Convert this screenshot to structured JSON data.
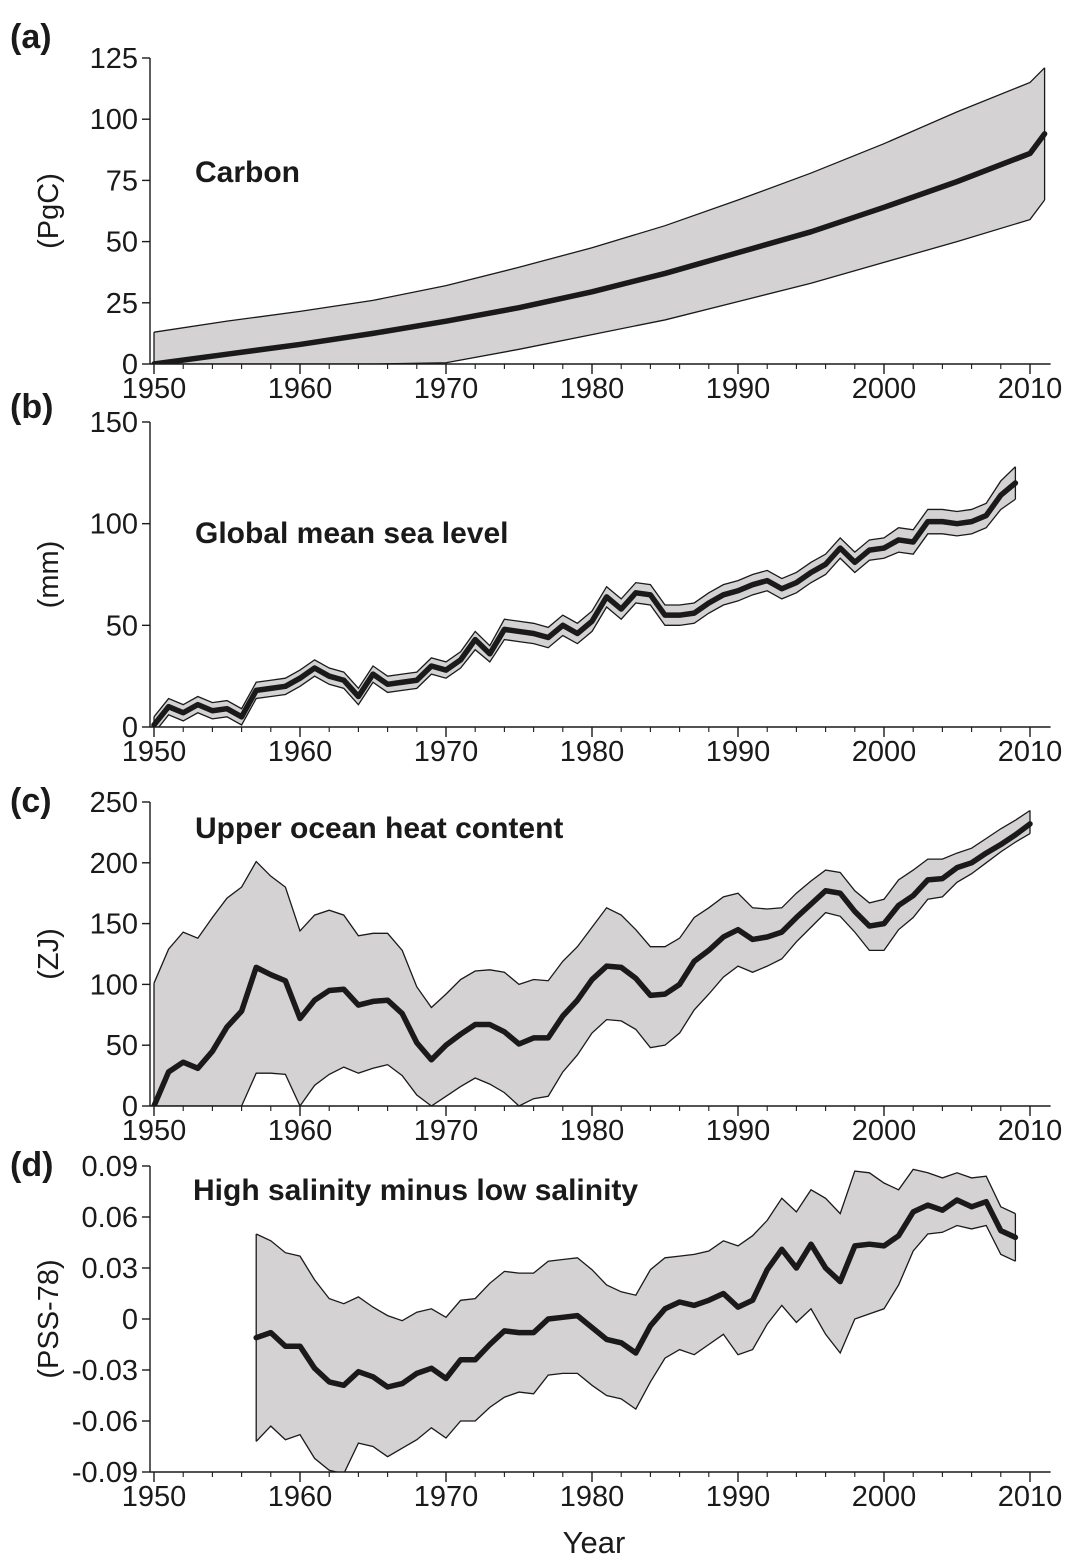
{
  "figure": {
    "x_axis_title": "Year",
    "colors": {
      "band": "#d4d2d3",
      "line": "#1a1a1a",
      "axis": "#1a1a1a"
    }
  },
  "chart_data": [
    {
      "type": "line",
      "panel": "(a)",
      "title": "Carbon",
      "ylabel": "(PgC)",
      "xlabel": "",
      "xlim": [
        1950,
        2011
      ],
      "ylim": [
        0,
        125
      ],
      "x_ticks": [
        1950,
        1960,
        1970,
        1980,
        1990,
        2000,
        2010
      ],
      "y_ticks": [
        0,
        25,
        50,
        75,
        100,
        125
      ],
      "y_tick_labels": [
        "0",
        "25",
        "50",
        "75",
        "100",
        "125"
      ],
      "grid": false,
      "series": [
        {
          "x": [
            1950,
            1955,
            1960,
            1965,
            1970,
            1975,
            1980,
            1985,
            1990,
            1995,
            2000,
            2005,
            2010,
            2011
          ],
          "values": [
            0,
            4,
            8,
            12.5,
            17.5,
            23,
            29.5,
            37,
            45.5,
            54,
            64,
            74.5,
            86,
            94
          ],
          "lower": [
            0,
            0,
            0,
            0,
            0.5,
            6,
            12,
            18,
            25.5,
            33,
            41.5,
            50,
            59,
            67
          ],
          "upper": [
            13,
            17.5,
            21.5,
            26,
            32,
            39.5,
            47.5,
            56.5,
            67,
            78,
            90,
            103,
            115,
            121
          ]
        }
      ]
    },
    {
      "type": "line",
      "panel": "(b)",
      "title": "Global mean sea level",
      "ylabel": "(mm)",
      "xlabel": "",
      "xlim": [
        1950,
        2011
      ],
      "ylim": [
        0,
        150
      ],
      "x_ticks": [
        1950,
        1960,
        1970,
        1980,
        1990,
        2000,
        2010
      ],
      "y_ticks": [
        0,
        50,
        100,
        150
      ],
      "y_tick_labels": [
        "0",
        "50",
        "100",
        "150"
      ],
      "grid": false,
      "series": [
        {
          "x": [
            1950,
            1951,
            1952,
            1953,
            1954,
            1955,
            1956,
            1957,
            1958,
            1959,
            1960,
            1961,
            1962,
            1963,
            1964,
            1965,
            1966,
            1967,
            1968,
            1969,
            1970,
            1971,
            1972,
            1973,
            1974,
            1975,
            1976,
            1977,
            1978,
            1979,
            1980,
            1981,
            1982,
            1983,
            1984,
            1985,
            1986,
            1987,
            1988,
            1989,
            1990,
            1991,
            1992,
            1993,
            1994,
            1995,
            1996,
            1997,
            1998,
            1999,
            2000,
            2001,
            2002,
            2003,
            2004,
            2005,
            2006,
            2007,
            2008,
            2009
          ],
          "values": [
            1,
            10,
            7,
            11,
            8,
            9,
            5,
            18,
            19,
            20,
            24,
            29,
            25,
            23,
            15,
            26,
            21,
            22,
            23,
            30,
            28,
            33,
            43,
            36,
            48,
            47,
            46,
            44,
            50,
            46,
            52,
            64,
            58,
            66,
            65,
            55,
            55,
            56,
            61,
            65,
            67,
            70,
            72,
            68,
            71,
            76,
            80,
            88,
            81,
            87,
            88,
            92,
            91,
            101,
            101,
            100,
            101,
            104,
            114,
            120
          ],
          "lower": [
            -3,
            6,
            3,
            7,
            4,
            5,
            1,
            14,
            15,
            16,
            20,
            25,
            21,
            19,
            11,
            22,
            17,
            18,
            19,
            26,
            24,
            29,
            38,
            32,
            43,
            42,
            41,
            39,
            45,
            41,
            47,
            59,
            53,
            61,
            60,
            50,
            50,
            51,
            56,
            60,
            62,
            65,
            67,
            63,
            66,
            71,
            75,
            83,
            76,
            82,
            83,
            86,
            85,
            95,
            95,
            94,
            95,
            98,
            107,
            112
          ],
          "upper": [
            5,
            14,
            11,
            15,
            12,
            13,
            9,
            22,
            23,
            24,
            28,
            33,
            29,
            27,
            19,
            30,
            25,
            26,
            27,
            34,
            32,
            37,
            47,
            40,
            53,
            52,
            51,
            49,
            55,
            51,
            57,
            69,
            63,
            71,
            70,
            60,
            60,
            61,
            66,
            70,
            72,
            75,
            77,
            73,
            76,
            81,
            85,
            93,
            86,
            92,
            93,
            98,
            97,
            107,
            107,
            106,
            107,
            110,
            121,
            128
          ]
        }
      ]
    },
    {
      "type": "line",
      "panel": "(c)",
      "title": "Upper ocean heat content",
      "ylabel": "(ZJ)",
      "xlabel": "",
      "xlim": [
        1950,
        2011
      ],
      "ylim": [
        0,
        250
      ],
      "x_ticks": [
        1950,
        1960,
        1970,
        1980,
        1990,
        2000,
        2010
      ],
      "y_ticks": [
        0,
        50,
        100,
        150,
        200,
        250
      ],
      "y_tick_labels": [
        "0",
        "50",
        "100",
        "150",
        "200",
        "250"
      ],
      "grid": false,
      "series": [
        {
          "x": [
            1950,
            1951,
            1952,
            1953,
            1954,
            1955,
            1956,
            1957,
            1958,
            1959,
            1960,
            1961,
            1962,
            1963,
            1964,
            1965,
            1966,
            1967,
            1968,
            1969,
            1970,
            1971,
            1972,
            1973,
            1974,
            1975,
            1976,
            1977,
            1978,
            1979,
            1980,
            1981,
            1982,
            1983,
            1984,
            1985,
            1986,
            1987,
            1988,
            1989,
            1990,
            1991,
            1992,
            1993,
            1994,
            1995,
            1996,
            1997,
            1998,
            1999,
            2000,
            2001,
            2002,
            2003,
            2004,
            2005,
            2006,
            2007,
            2008,
            2009,
            2010
          ],
          "values": [
            0,
            28,
            36,
            31,
            45,
            65,
            78,
            114,
            108,
            103,
            72,
            87,
            95,
            96,
            83,
            86,
            87,
            76,
            52,
            38,
            50,
            59,
            67,
            67,
            61,
            51,
            56,
            56,
            74,
            87,
            104,
            115,
            114,
            105,
            91,
            92,
            100,
            119,
            128,
            139,
            145,
            137,
            139,
            143,
            155,
            166,
            177,
            175,
            160,
            148,
            150,
            165,
            173,
            186,
            187,
            196,
            200,
            208,
            215,
            223,
            232
          ],
          "lower": [
            0,
            0,
            0,
            0,
            0,
            0,
            0,
            27,
            27,
            26,
            0,
            17,
            26,
            32,
            27,
            31,
            34,
            25,
            9,
            0,
            8,
            16,
            23,
            18,
            11,
            0,
            6,
            8,
            28,
            42,
            60,
            71,
            70,
            63,
            48,
            50,
            60,
            79,
            92,
            106,
            115,
            110,
            115,
            121,
            135,
            147,
            159,
            156,
            143,
            128,
            128,
            145,
            155,
            170,
            172,
            184,
            191,
            200,
            209,
            217,
            224
          ],
          "upper": [
            101,
            129,
            143,
            138,
            155,
            171,
            180,
            201,
            189,
            180,
            144,
            157,
            161,
            157,
            140,
            142,
            142,
            128,
            98,
            81,
            92,
            104,
            111,
            112,
            110,
            100,
            104,
            103,
            119,
            131,
            147,
            163,
            157,
            145,
            131,
            131,
            138,
            155,
            163,
            172,
            175,
            163,
            162,
            163,
            175,
            185,
            194,
            192,
            177,
            167,
            170,
            186,
            194,
            203,
            203,
            208,
            212,
            220,
            228,
            235,
            243
          ]
        }
      ]
    },
    {
      "type": "line",
      "panel": "(d)",
      "title": "High salinity minus low salinity",
      "ylabel": "(PSS-78)",
      "xlabel": "Year",
      "xlim": [
        1950,
        2011
      ],
      "ylim": [
        -0.09,
        0.09
      ],
      "x_ticks": [
        1950,
        1960,
        1970,
        1980,
        1990,
        2000,
        2010
      ],
      "y_ticks": [
        -0.09,
        -0.06,
        -0.03,
        0,
        0.03,
        0.06,
        0.09
      ],
      "y_tick_labels": [
        "-0.09",
        "-0.06",
        "-0.03",
        "0",
        "0.03",
        "0.06",
        "0.09"
      ],
      "grid": false,
      "series": [
        {
          "x": [
            1957,
            1958,
            1959,
            1960,
            1961,
            1962,
            1963,
            1964,
            1965,
            1966,
            1967,
            1968,
            1969,
            1970,
            1971,
            1972,
            1973,
            1974,
            1975,
            1976,
            1977,
            1978,
            1979,
            1980,
            1981,
            1982,
            1983,
            1984,
            1985,
            1986,
            1987,
            1988,
            1989,
            1990,
            1991,
            1992,
            1993,
            1994,
            1995,
            1996,
            1997,
            1998,
            1999,
            2000,
            2001,
            2002,
            2003,
            2004,
            2005,
            2006,
            2007,
            2008,
            2009
          ],
          "values": [
            -0.011,
            -0.008,
            -0.016,
            -0.016,
            -0.029,
            -0.037,
            -0.039,
            -0.031,
            -0.034,
            -0.04,
            -0.038,
            -0.032,
            -0.029,
            -0.035,
            -0.024,
            -0.024,
            -0.015,
            -0.007,
            -0.008,
            -0.008,
            0.0,
            0.001,
            0.002,
            -0.005,
            -0.012,
            -0.014,
            -0.02,
            -0.004,
            0.006,
            0.01,
            0.008,
            0.011,
            0.015,
            0.007,
            0.011,
            0.029,
            0.041,
            0.03,
            0.044,
            0.03,
            0.022,
            0.043,
            0.044,
            0.043,
            0.049,
            0.063,
            0.067,
            0.064,
            0.07,
            0.066,
            0.069,
            0.052,
            0.048
          ],
          "lower": [
            -0.072,
            -0.063,
            -0.071,
            -0.068,
            -0.082,
            -0.089,
            -0.091,
            -0.073,
            -0.075,
            -0.081,
            -0.076,
            -0.071,
            -0.064,
            -0.07,
            -0.06,
            -0.06,
            -0.052,
            -0.046,
            -0.043,
            -0.044,
            -0.033,
            -0.032,
            -0.032,
            -0.039,
            -0.045,
            -0.047,
            -0.053,
            -0.037,
            -0.023,
            -0.018,
            -0.021,
            -0.015,
            -0.009,
            -0.021,
            -0.018,
            -0.003,
            0.008,
            -0.002,
            0.006,
            -0.009,
            -0.02,
            0.0,
            0.003,
            0.006,
            0.02,
            0.04,
            0.05,
            0.051,
            0.055,
            0.053,
            0.055,
            0.038,
            0.034
          ],
          "upper": [
            0.05,
            0.046,
            0.039,
            0.037,
            0.023,
            0.012,
            0.009,
            0.013,
            0.007,
            0.002,
            -0.001,
            0.004,
            0.006,
            0.001,
            0.011,
            0.012,
            0.021,
            0.028,
            0.027,
            0.027,
            0.034,
            0.035,
            0.036,
            0.029,
            0.02,
            0.016,
            0.014,
            0.029,
            0.036,
            0.037,
            0.038,
            0.04,
            0.046,
            0.043,
            0.049,
            0.058,
            0.071,
            0.063,
            0.076,
            0.071,
            0.062,
            0.087,
            0.086,
            0.08,
            0.076,
            0.088,
            0.086,
            0.083,
            0.086,
            0.083,
            0.084,
            0.066,
            0.062
          ]
        }
      ]
    }
  ]
}
